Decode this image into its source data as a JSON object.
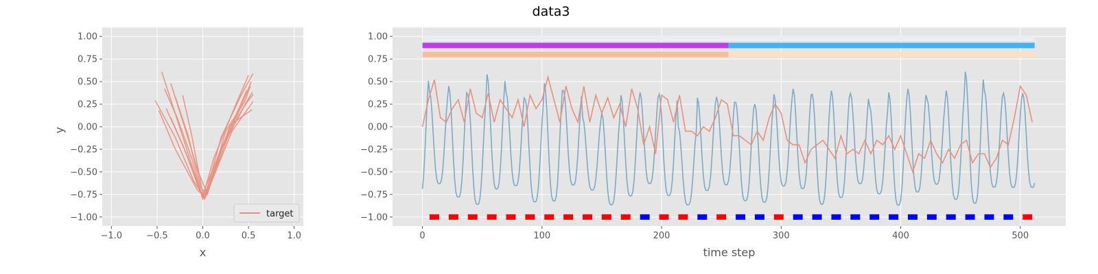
{
  "figure": {
    "title": "data3"
  },
  "colors": {
    "background": "#ffffff",
    "axes_face": "#e5e5e5",
    "grid": "#ffffff",
    "tick_text": "#555555",
    "label_text": "#555555",
    "title_text": "#000000",
    "target_line": "#e8907e",
    "predicted_line": "#7aaac8",
    "phase_bar_a_left": "#bf3df0",
    "phase_bar_a_right": "#3fb6f0",
    "phase_bar_b_left": "#f6bf98",
    "phase_bar_b_right": "#fbe0c6",
    "top_band": "#ececf4",
    "marker_red": "#ff0000",
    "marker_blue": "#0000ff"
  },
  "chart_data": [
    {
      "type": "line",
      "panel": "left",
      "xlabel": "x",
      "ylabel": "y",
      "xlim": [
        -1.1,
        1.1
      ],
      "ylim": [
        -1.1,
        1.1
      ],
      "xticks": [
        -1.0,
        -0.5,
        0.0,
        0.5,
        1.0
      ],
      "yticks": [
        -1.0,
        -0.75,
        -0.5,
        -0.25,
        0.0,
        0.25,
        0.5,
        0.75,
        1.0
      ],
      "xtick_labels": [
        "−1.0",
        "−0.5",
        "0.0",
        "0.5",
        "1.0"
      ],
      "ytick_labels": [
        "−1.00",
        "−0.75",
        "−0.50",
        "−0.25",
        "0.00",
        "0.25",
        "0.50",
        "0.75",
        "1.00"
      ],
      "grid": true,
      "legend": {
        "entries": [
          "target"
        ],
        "placement": "lower-right"
      },
      "series": [
        {
          "name": "target",
          "strokes": [
            [
              [
                -0.45,
                0.61
              ],
              [
                -0.27,
                0.05
              ],
              [
                -0.08,
                -0.55
              ],
              [
                0.0,
                -0.78
              ],
              [
                0.12,
                -0.35
              ],
              [
                0.35,
                0.22
              ],
              [
                0.5,
                0.57
              ]
            ],
            [
              [
                -0.52,
                0.29
              ],
              [
                -0.3,
                -0.12
              ],
              [
                -0.1,
                -0.6
              ],
              [
                0.02,
                -0.79
              ],
              [
                0.2,
                -0.12
              ],
              [
                0.42,
                0.35
              ],
              [
                0.55,
                0.59
              ]
            ],
            [
              [
                -0.35,
                0.48
              ],
              [
                -0.2,
                0.0
              ],
              [
                -0.05,
                -0.5
              ],
              [
                0.04,
                -0.72
              ],
              [
                0.18,
                -0.3
              ],
              [
                0.38,
                0.1
              ],
              [
                0.54,
                0.38
              ]
            ],
            [
              [
                -0.4,
                0.2
              ],
              [
                -0.22,
                -0.2
              ],
              [
                -0.04,
                -0.66
              ],
              [
                0.0,
                -0.8
              ],
              [
                0.15,
                -0.42
              ],
              [
                0.3,
                0.02
              ],
              [
                0.54,
                0.19
              ]
            ],
            [
              [
                -0.3,
                0.33
              ],
              [
                -0.16,
                -0.1
              ],
              [
                -0.02,
                -0.68
              ],
              [
                0.05,
                -0.75
              ],
              [
                0.22,
                -0.2
              ],
              [
                0.4,
                0.18
              ],
              [
                0.53,
                0.5
              ]
            ],
            [
              [
                -0.48,
                0.18
              ],
              [
                -0.3,
                -0.25
              ],
              [
                -0.06,
                -0.7
              ],
              [
                0.03,
                -0.78
              ],
              [
                0.1,
                -0.6
              ],
              [
                0.32,
                -0.05
              ],
              [
                0.55,
                0.28
              ]
            ],
            [
              [
                -0.22,
                0.35
              ],
              [
                -0.12,
                -0.1
              ],
              [
                0.0,
                -0.74
              ],
              [
                0.08,
                -0.65
              ],
              [
                0.25,
                -0.05
              ],
              [
                0.46,
                0.28
              ],
              [
                0.52,
                0.45
              ]
            ],
            [
              [
                -0.42,
                0.42
              ],
              [
                -0.28,
                0.1
              ],
              [
                -0.12,
                -0.35
              ],
              [
                -0.01,
                -0.77
              ],
              [
                0.2,
                -0.25
              ],
              [
                0.36,
                0.12
              ],
              [
                0.48,
                0.4
              ]
            ],
            [
              [
                -0.35,
                0.1
              ],
              [
                -0.18,
                -0.3
              ],
              [
                -0.03,
                -0.72
              ],
              [
                0.02,
                -0.8
              ],
              [
                0.28,
                -0.1
              ],
              [
                0.45,
                0.22
              ],
              [
                0.55,
                0.36
              ]
            ]
          ]
        }
      ]
    },
    {
      "type": "line",
      "panel": "right",
      "xlabel": "time step",
      "ylabel": "",
      "xlim": [
        -25,
        538
      ],
      "ylim": [
        -1.1,
        1.1
      ],
      "xticks": [
        0,
        100,
        200,
        300,
        400,
        500
      ],
      "yticks": [
        -1.0,
        -0.75,
        -0.5,
        -0.25,
        0.0,
        0.25,
        0.5,
        0.75,
        1.0
      ],
      "xtick_labels": [
        "0",
        "100",
        "200",
        "300",
        "400",
        "500"
      ],
      "ytick_labels": [
        "−1.00",
        "−0.75",
        "−0.50",
        "−0.25",
        "0.00",
        "0.25",
        "0.50",
        "0.75",
        "1.00"
      ],
      "grid": true,
      "series": [
        {
          "name": "",
          "color_key": "predicted_line",
          "period": 16,
          "x_range": [
            0,
            512
          ],
          "y_min_range": [
            -0.8,
            -0.55
          ],
          "y_max_range": [
            0.2,
            0.6
          ],
          "peaks": [
            [
              6,
              0.59
            ],
            [
              22,
              0.38
            ],
            [
              38,
              0.45
            ],
            [
              54,
              0.35
            ],
            [
              70,
              0.58
            ],
            [
              86,
              0.38
            ],
            [
              102,
              0.3
            ],
            [
              118,
              0.48
            ],
            [
              134,
              0.4
            ],
            [
              150,
              0.1
            ],
            [
              166,
              0.15
            ],
            [
              182,
              0.35
            ],
            [
              198,
              0.38
            ],
            [
              214,
              0.36
            ],
            [
              230,
              0.0
            ],
            [
              246,
              0.32
            ],
            [
              262,
              0.33
            ],
            [
              278,
              0.27
            ],
            [
              294,
              0.25
            ],
            [
              310,
              0.36
            ],
            [
              326,
              0.42
            ],
            [
              342,
              0.36
            ],
            [
              358,
              0.4
            ],
            [
              374,
              0.37
            ],
            [
              390,
              0.23
            ],
            [
              406,
              0.38
            ],
            [
              422,
              0.42
            ],
            [
              438,
              0.31
            ],
            [
              454,
              0.4
            ],
            [
              470,
              0.61
            ],
            [
              486,
              0.4
            ],
            [
              502,
              0.37
            ]
          ]
        },
        {
          "name": "target",
          "color_key": "target_line",
          "x": [
            0,
            5,
            10,
            15,
            20,
            25,
            30,
            35,
            40,
            45,
            50,
            55,
            60,
            65,
            70,
            75,
            80,
            85,
            90,
            95,
            100,
            105,
            110,
            115,
            120,
            125,
            130,
            135,
            140,
            145,
            150,
            155,
            160,
            165,
            170,
            175,
            180,
            185,
            190,
            195,
            200,
            205,
            210,
            215,
            220,
            225,
            230,
            235,
            240,
            245,
            250,
            255,
            260,
            265,
            270,
            275,
            280,
            285,
            290,
            295,
            300,
            305,
            310,
            315,
            320,
            325,
            330,
            335,
            340,
            345,
            350,
            355,
            360,
            365,
            370,
            375,
            380,
            385,
            390,
            395,
            400,
            405,
            410,
            415,
            420,
            425,
            430,
            435,
            440,
            445,
            450,
            455,
            460,
            465,
            470,
            475,
            480,
            485,
            490,
            495,
            500,
            505,
            510
          ],
          "values": [
            0.0,
            0.3,
            0.52,
            0.1,
            0.05,
            0.2,
            0.3,
            0.05,
            0.42,
            0.15,
            0.1,
            0.37,
            0.05,
            0.3,
            0.2,
            0.1,
            0.3,
            0.0,
            0.35,
            0.2,
            0.3,
            0.55,
            0.3,
            0.05,
            0.45,
            0.2,
            0.05,
            0.45,
            0.05,
            0.35,
            0.15,
            0.32,
            0.1,
            0.25,
            0.0,
            0.42,
            0.2,
            -0.2,
            0.0,
            -0.3,
            0.35,
            0.3,
            0.05,
            0.35,
            -0.05,
            -0.05,
            -0.1,
            0.0,
            -0.05,
            0.1,
            0.3,
            0.25,
            -0.1,
            -0.1,
            -0.15,
            -0.2,
            -0.05,
            -0.15,
            0.1,
            0.25,
            0.15,
            -0.15,
            -0.2,
            -0.2,
            -0.4,
            -0.25,
            -0.2,
            -0.15,
            -0.25,
            -0.35,
            -0.1,
            -0.3,
            -0.25,
            -0.3,
            -0.15,
            -0.3,
            -0.15,
            -0.2,
            -0.1,
            -0.25,
            -0.1,
            -0.3,
            -0.5,
            -0.3,
            -0.35,
            -0.15,
            -0.3,
            -0.4,
            -0.25,
            -0.35,
            -0.2,
            -0.15,
            -0.4,
            -0.3,
            -0.3,
            -0.45,
            -0.35,
            -0.15,
            -0.2,
            0.1,
            0.45,
            0.35,
            0.05
          ]
        }
      ],
      "phase_bars": [
        {
          "y": 0.98,
          "color_key": "top_band",
          "segments": [
            [
              0,
              512
            ]
          ]
        },
        {
          "y": 0.9,
          "color_keys": [
            "phase_bar_a_left",
            "phase_bar_a_right"
          ],
          "split": 256,
          "range": [
            0,
            512
          ]
        },
        {
          "y": 0.8,
          "color_keys": [
            "phase_bar_b_left",
            "phase_bar_b_right"
          ],
          "split": 256,
          "range": [
            0,
            512
          ]
        }
      ],
      "markers": {
        "y": -1.0,
        "width": 8,
        "x": [
          10,
          26,
          42,
          58,
          74,
          90,
          106,
          122,
          138,
          154,
          170,
          186,
          202,
          218,
          234,
          250,
          266,
          282,
          298,
          314,
          330,
          346,
          362,
          378,
          394,
          410,
          426,
          442,
          458,
          474,
          490,
          506
        ],
        "colors": [
          "red",
          "red",
          "red",
          "red",
          "red",
          "red",
          "red",
          "red",
          "red",
          "red",
          "red",
          "blue",
          "red",
          "red",
          "blue",
          "red",
          "blue",
          "blue",
          "red",
          "blue",
          "blue",
          "blue",
          "blue",
          "blue",
          "blue",
          "blue",
          "blue",
          "blue",
          "blue",
          "blue",
          "blue",
          "red"
        ]
      }
    }
  ]
}
